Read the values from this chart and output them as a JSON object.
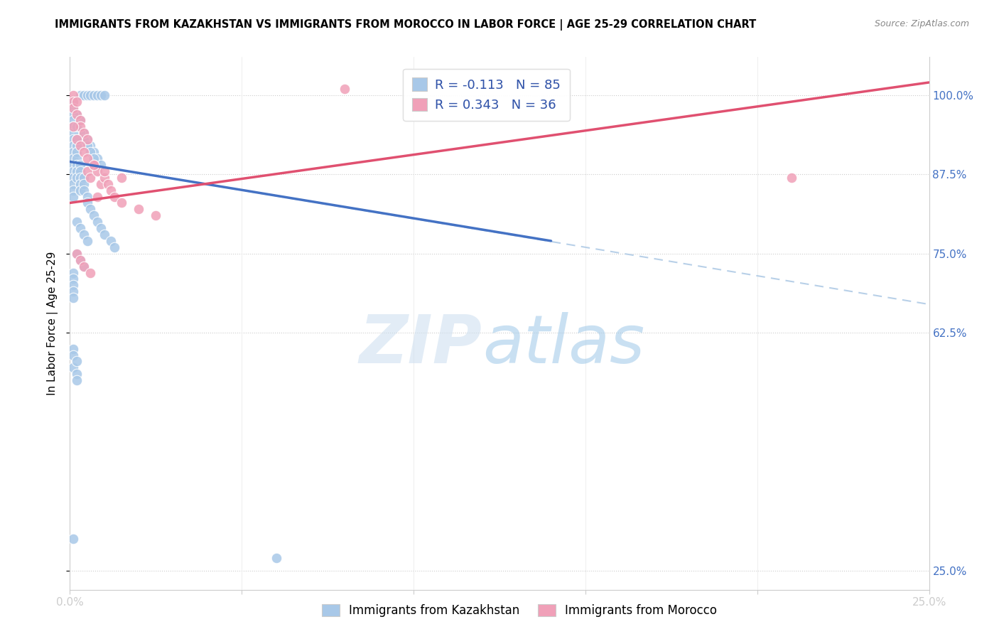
{
  "title": "IMMIGRANTS FROM KAZAKHSTAN VS IMMIGRANTS FROM MOROCCO IN LABOR FORCE | AGE 25-29 CORRELATION CHART",
  "source": "Source: ZipAtlas.com",
  "ylabel": "In Labor Force | Age 25-29",
  "xlim": [
    0.0,
    0.25
  ],
  "ylim": [
    0.22,
    1.06
  ],
  "xticks": [
    0.0,
    0.05,
    0.1,
    0.15,
    0.2,
    0.25
  ],
  "xticklabels": [
    "0.0%",
    "",
    "",
    "",
    "",
    "25.0%"
  ],
  "yticks": [
    0.25,
    0.625,
    0.75,
    0.875,
    1.0
  ],
  "yticklabels": [
    "25.0%",
    "62.5%",
    "75.0%",
    "87.5%",
    "100.0%"
  ],
  "kazakhstan_color": "#a8c8e8",
  "morocco_color": "#f0a0b8",
  "kazakhstan_line_color": "#4472c4",
  "morocco_line_color": "#e05070",
  "dashed_line_color": "#b8d0e8",
  "kaz_line_x0": 0.0,
  "kaz_line_y0": 0.895,
  "kaz_line_x1": 0.14,
  "kaz_line_y1": 0.77,
  "mor_line_x0": 0.0,
  "mor_line_y0": 0.83,
  "mor_line_x1": 0.25,
  "mor_line_y1": 1.02,
  "dash_line_x0": 0.0,
  "dash_line_y0": 0.895,
  "dash_line_x1": 0.25,
  "dash_line_y1": 0.67,
  "kaz_scatter_x": [
    0.003,
    0.004,
    0.005,
    0.006,
    0.007,
    0.008,
    0.009,
    0.01,
    0.002,
    0.003,
    0.004,
    0.005,
    0.006,
    0.007,
    0.008,
    0.009,
    0.002,
    0.003,
    0.004,
    0.005,
    0.006,
    0.007,
    0.002,
    0.003,
    0.001,
    0.001,
    0.001,
    0.001,
    0.001,
    0.001,
    0.001,
    0.001,
    0.001,
    0.001,
    0.001,
    0.001,
    0.001,
    0.001,
    0.001,
    0.001,
    0.002,
    0.002,
    0.002,
    0.002,
    0.002,
    0.002,
    0.002,
    0.002,
    0.003,
    0.003,
    0.003,
    0.003,
    0.003,
    0.004,
    0.004,
    0.004,
    0.005,
    0.005,
    0.006,
    0.007,
    0.008,
    0.009,
    0.01,
    0.012,
    0.013,
    0.002,
    0.003,
    0.004,
    0.005,
    0.002,
    0.003,
    0.004,
    0.001,
    0.001,
    0.001,
    0.001,
    0.001,
    0.001,
    0.001,
    0.001,
    0.001,
    0.002,
    0.002,
    0.002,
    0.06
  ],
  "kaz_scatter_y": [
    1.0,
    1.0,
    1.0,
    1.0,
    1.0,
    1.0,
    1.0,
    1.0,
    0.97,
    0.96,
    0.94,
    0.93,
    0.92,
    0.91,
    0.9,
    0.89,
    0.95,
    0.94,
    0.93,
    0.92,
    0.91,
    0.9,
    0.88,
    0.87,
    0.99,
    0.98,
    0.97,
    0.96,
    0.95,
    0.94,
    0.93,
    0.92,
    0.91,
    0.9,
    0.89,
    0.88,
    0.87,
    0.86,
    0.85,
    0.84,
    0.95,
    0.93,
    0.92,
    0.91,
    0.9,
    0.89,
    0.88,
    0.87,
    0.89,
    0.88,
    0.87,
    0.86,
    0.85,
    0.87,
    0.86,
    0.85,
    0.84,
    0.83,
    0.82,
    0.81,
    0.8,
    0.79,
    0.78,
    0.77,
    0.76,
    0.8,
    0.79,
    0.78,
    0.77,
    0.75,
    0.74,
    0.73,
    0.72,
    0.71,
    0.7,
    0.69,
    0.68,
    0.6,
    0.59,
    0.57,
    0.3,
    0.58,
    0.56,
    0.55,
    0.27
  ],
  "mor_scatter_x": [
    0.001,
    0.001,
    0.001,
    0.002,
    0.002,
    0.003,
    0.003,
    0.004,
    0.005,
    0.005,
    0.006,
    0.007,
    0.008,
    0.008,
    0.009,
    0.01,
    0.011,
    0.012,
    0.013,
    0.015,
    0.02,
    0.025,
    0.001,
    0.002,
    0.003,
    0.004,
    0.005,
    0.007,
    0.01,
    0.015,
    0.002,
    0.003,
    0.004,
    0.006,
    0.08,
    0.21
  ],
  "mor_scatter_y": [
    1.0,
    0.99,
    0.98,
    0.99,
    0.97,
    0.96,
    0.95,
    0.94,
    0.93,
    0.88,
    0.87,
    0.89,
    0.88,
    0.84,
    0.86,
    0.87,
    0.86,
    0.85,
    0.84,
    0.83,
    0.82,
    0.81,
    0.95,
    0.93,
    0.92,
    0.91,
    0.9,
    0.89,
    0.88,
    0.87,
    0.75,
    0.74,
    0.73,
    0.72,
    1.01,
    0.87
  ]
}
